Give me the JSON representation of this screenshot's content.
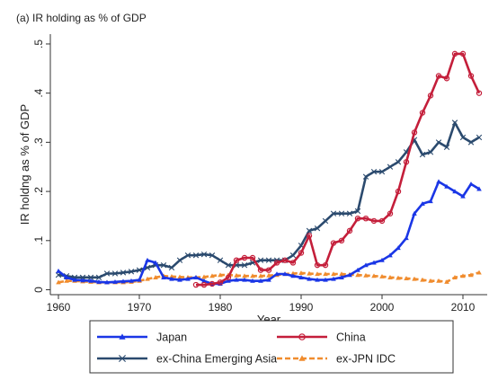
{
  "chart_data": {
    "type": "line",
    "title": "(a) IR holding as % of GDP",
    "xlabel": "Year",
    "ylabel": "IR holdng as % of GDP",
    "xlim": [
      1959,
      2013
    ],
    "ylim": [
      -0.01,
      0.52
    ],
    "x_ticks": [
      1960,
      1970,
      1980,
      1990,
      2000,
      2010
    ],
    "x_tick_labels": [
      "1960",
      "1970",
      "1980",
      "1990",
      "2000",
      "2010"
    ],
    "y_ticks": [
      0,
      0.1,
      0.2,
      0.3,
      0.4,
      0.5
    ],
    "y_tick_labels": [
      "0",
      ".1",
      ".2",
      ".3",
      ".4",
      ".5"
    ],
    "grid": false,
    "legend_position": "bottom",
    "series": [
      {
        "name": "Japan",
        "color": "#1a36e6",
        "marker": "triangle",
        "x": [
          1960,
          1961,
          1962,
          1963,
          1964,
          1965,
          1966,
          1967,
          1968,
          1969,
          1970,
          1971,
          1972,
          1973,
          1974,
          1975,
          1976,
          1977,
          1978,
          1979,
          1980,
          1981,
          1982,
          1983,
          1984,
          1985,
          1986,
          1987,
          1988,
          1989,
          1990,
          1991,
          1992,
          1993,
          1994,
          1995,
          1996,
          1997,
          1998,
          1999,
          2000,
          2001,
          2002,
          2003,
          2004,
          2005,
          2006,
          2007,
          2008,
          2009,
          2010,
          2011,
          2012
        ],
        "y": [
          0.038,
          0.025,
          0.02,
          0.019,
          0.018,
          0.016,
          0.015,
          0.016,
          0.017,
          0.018,
          0.02,
          0.06,
          0.055,
          0.025,
          0.022,
          0.02,
          0.022,
          0.025,
          0.018,
          0.012,
          0.012,
          0.018,
          0.02,
          0.02,
          0.018,
          0.018,
          0.02,
          0.032,
          0.032,
          0.028,
          0.025,
          0.022,
          0.02,
          0.02,
          0.022,
          0.025,
          0.03,
          0.04,
          0.05,
          0.055,
          0.06,
          0.07,
          0.085,
          0.105,
          0.155,
          0.175,
          0.18,
          0.22,
          0.21,
          0.2,
          0.19,
          0.215,
          0.205
        ]
      },
      {
        "name": "China",
        "color": "#c41e3a",
        "marker": "circle",
        "x": [
          1977,
          1978,
          1979,
          1980,
          1981,
          1982,
          1983,
          1984,
          1985,
          1986,
          1987,
          1988,
          1989,
          1990,
          1991,
          1992,
          1993,
          1994,
          1995,
          1996,
          1997,
          1998,
          1999,
          2000,
          2001,
          2002,
          2003,
          2004,
          2005,
          2006,
          2007,
          2008,
          2009,
          2010,
          2011,
          2012
        ],
        "y": [
          0.01,
          0.01,
          0.012,
          0.015,
          0.025,
          0.06,
          0.065,
          0.065,
          0.04,
          0.04,
          0.055,
          0.06,
          0.055,
          0.075,
          0.11,
          0.05,
          0.05,
          0.095,
          0.1,
          0.12,
          0.145,
          0.145,
          0.14,
          0.14,
          0.155,
          0.2,
          0.26,
          0.32,
          0.36,
          0.395,
          0.435,
          0.43,
          0.48,
          0.48,
          0.435,
          0.4
        ]
      },
      {
        "name": "ex-China Emerging Asia",
        "color": "#2b4a6e",
        "marker": "x",
        "x": [
          1960,
          1961,
          1962,
          1963,
          1964,
          1965,
          1966,
          1967,
          1968,
          1969,
          1970,
          1971,
          1972,
          1973,
          1974,
          1975,
          1976,
          1977,
          1978,
          1979,
          1980,
          1981,
          1982,
          1983,
          1984,
          1985,
          1986,
          1987,
          1988,
          1989,
          1990,
          1991,
          1992,
          1993,
          1994,
          1995,
          1996,
          1997,
          1998,
          1999,
          2000,
          2001,
          2002,
          2003,
          2004,
          2005,
          2006,
          2007,
          2008,
          2009,
          2010,
          2011,
          2012
        ],
        "y": [
          0.03,
          0.028,
          0.025,
          0.025,
          0.025,
          0.025,
          0.033,
          0.033,
          0.035,
          0.037,
          0.04,
          0.045,
          0.05,
          0.05,
          0.045,
          0.06,
          0.07,
          0.07,
          0.072,
          0.07,
          0.06,
          0.05,
          0.05,
          0.05,
          0.055,
          0.06,
          0.06,
          0.06,
          0.06,
          0.07,
          0.09,
          0.12,
          0.125,
          0.14,
          0.155,
          0.155,
          0.155,
          0.16,
          0.23,
          0.24,
          0.24,
          0.25,
          0.26,
          0.28,
          0.305,
          0.275,
          0.28,
          0.3,
          0.29,
          0.34,
          0.31,
          0.3,
          0.31
        ]
      },
      {
        "name": "ex-JPN IDC",
        "color": "#f08c2e",
        "marker": "triangle",
        "dash": "6,3",
        "x": [
          1960,
          1961,
          1962,
          1963,
          1964,
          1965,
          1966,
          1967,
          1968,
          1969,
          1970,
          1971,
          1972,
          1973,
          1974,
          1975,
          1976,
          1977,
          1978,
          1979,
          1980,
          1981,
          1982,
          1983,
          1984,
          1985,
          1986,
          1987,
          1988,
          1989,
          1990,
          1991,
          1992,
          1993,
          1994,
          1995,
          1996,
          1997,
          1998,
          1999,
          2000,
          2001,
          2002,
          2003,
          2004,
          2005,
          2006,
          2007,
          2008,
          2009,
          2010,
          2011,
          2012
        ],
        "y": [
          0.015,
          0.018,
          0.018,
          0.017,
          0.016,
          0.015,
          0.015,
          0.015,
          0.015,
          0.016,
          0.018,
          0.022,
          0.025,
          0.028,
          0.027,
          0.026,
          0.025,
          0.025,
          0.026,
          0.028,
          0.03,
          0.03,
          0.029,
          0.028,
          0.028,
          0.028,
          0.029,
          0.03,
          0.032,
          0.033,
          0.034,
          0.033,
          0.032,
          0.032,
          0.032,
          0.032,
          0.031,
          0.03,
          0.029,
          0.028,
          0.027,
          0.025,
          0.024,
          0.023,
          0.022,
          0.02,
          0.018,
          0.018,
          0.016,
          0.025,
          0.028,
          0.03,
          0.035
        ]
      }
    ]
  }
}
